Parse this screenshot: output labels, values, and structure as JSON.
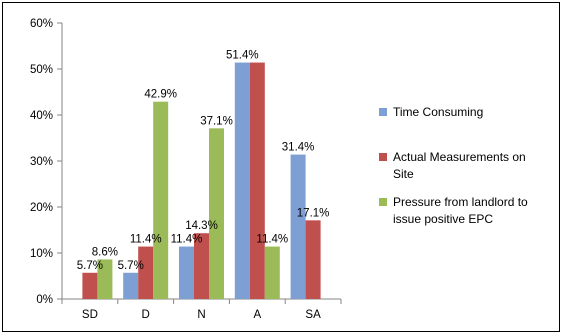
{
  "chart_data": {
    "type": "bar",
    "categories": [
      "SD",
      "D",
      "N",
      "A",
      "SA"
    ],
    "series": [
      {
        "name": "Time Consuming",
        "color": "#7d9fd4",
        "values": [
          0,
          5.7,
          11.4,
          51.4,
          31.4
        ],
        "labels": [
          "",
          "5.7%",
          "11.4%",
          "51.4%",
          "31.4%"
        ]
      },
      {
        "name": "Actual Measurements on Site",
        "color": "#c0504d",
        "values": [
          5.7,
          11.4,
          14.3,
          51.4,
          17.1
        ],
        "labels": [
          "5.7%",
          "11.4%",
          "14.3%",
          "",
          "17.1%"
        ]
      },
      {
        "name": "Pressure from landlord to issue positive EPC",
        "color": "#9bbb59",
        "values": [
          8.6,
          42.9,
          37.1,
          11.4,
          0
        ],
        "labels": [
          "8.6%",
          "42.9%",
          "37.1%",
          "11.4%",
          ""
        ]
      }
    ],
    "legend_lines": [
      [
        "Time Consuming"
      ],
      [
        "Actual Measurements on",
        "Site"
      ],
      [
        "Pressure from landlord to",
        "issue positive EPC"
      ]
    ],
    "yticks": [
      "0%",
      "10%",
      "20%",
      "30%",
      "40%",
      "50%",
      "60%"
    ],
    "ylim": [
      0,
      60
    ],
    "grid": false,
    "legend_position": "right",
    "title": "",
    "xlabel": "",
    "ylabel": ""
  }
}
